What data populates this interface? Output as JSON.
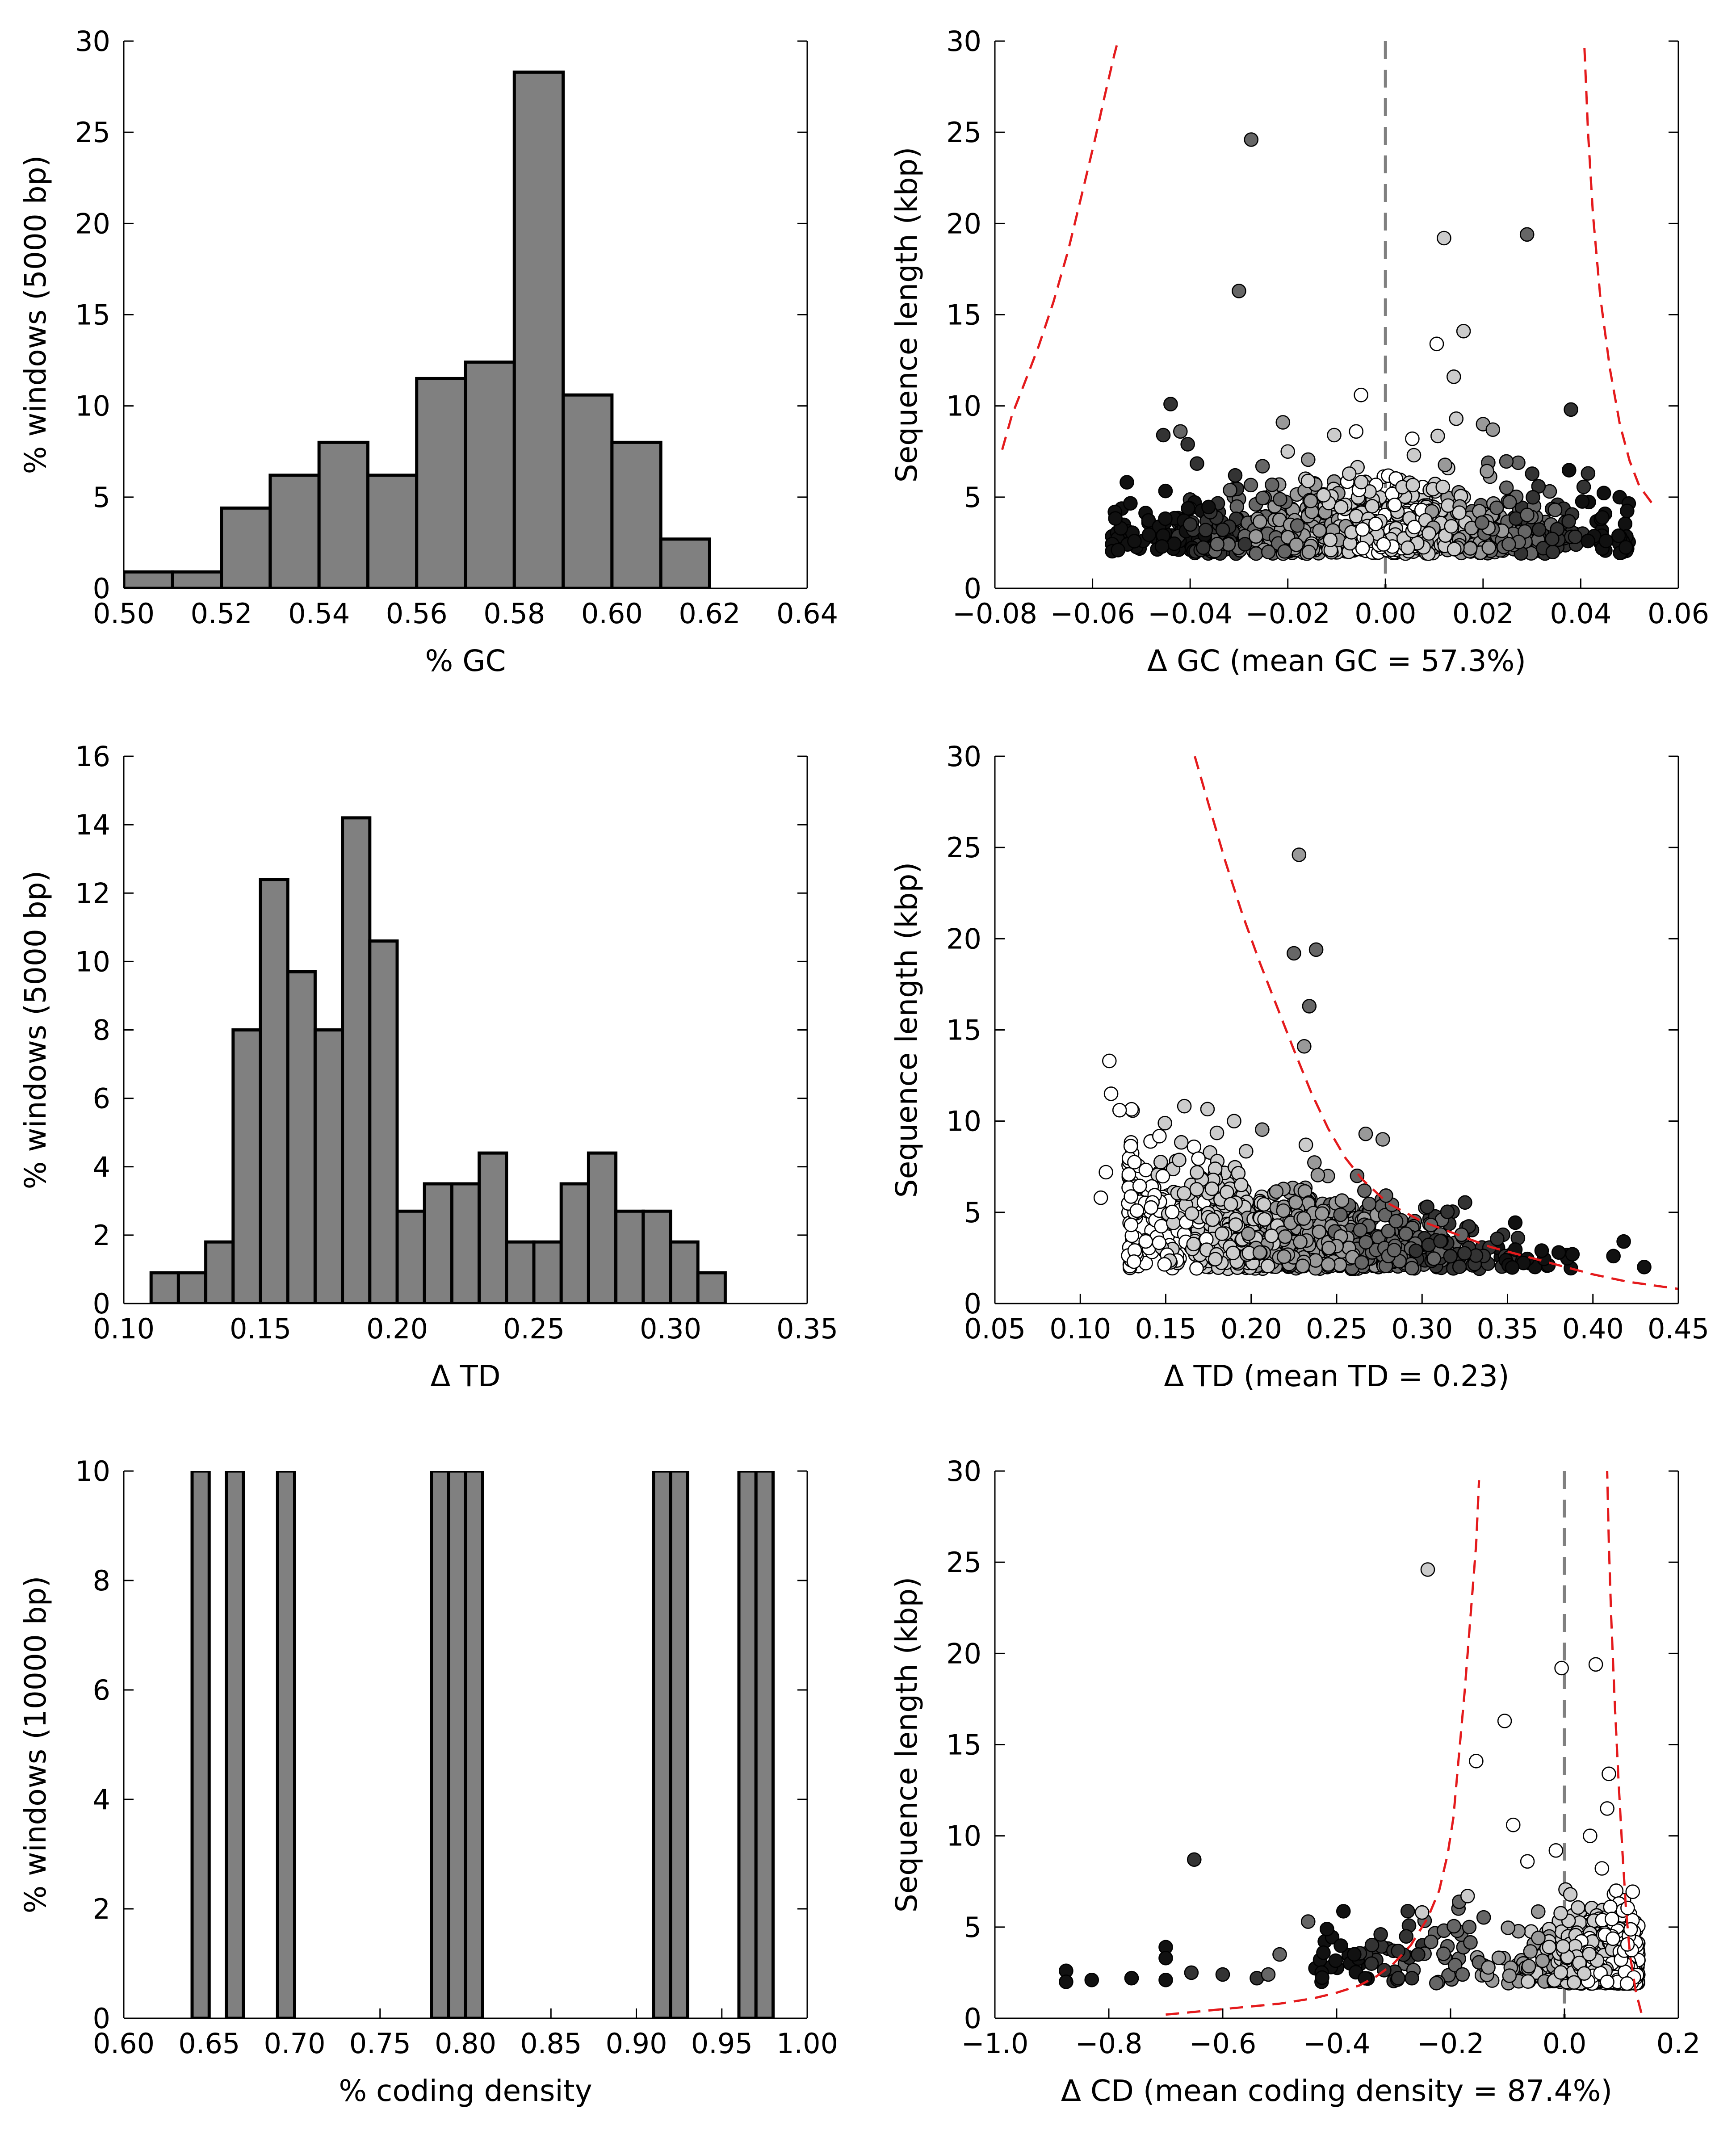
{
  "colors": {
    "bar_fill": "#808080",
    "bar_stroke": "#000000",
    "threshold_line": "#e41a1c",
    "zero_line": "#808080",
    "point_stroke": "#000000"
  },
  "chart_data": [
    {
      "type": "bar",
      "subtype": "histogram",
      "xlabel": "% GC",
      "ylabel": "% windows (5000 bp)",
      "xlim": [
        0.5,
        0.64
      ],
      "ylim": [
        0,
        30
      ],
      "xticks": [
        "0.50",
        "0.52",
        "0.54",
        "0.56",
        "0.58",
        "0.60",
        "0.62",
        "0.64"
      ],
      "yticks": [
        "0",
        "5",
        "10",
        "15",
        "20",
        "25",
        "30"
      ],
      "bin_width": 0.01,
      "bin_starts": [
        0.5,
        0.51,
        0.52,
        0.53,
        0.54,
        0.55,
        0.56,
        0.57,
        0.58,
        0.59,
        0.6,
        0.61
      ],
      "values": [
        0.9,
        0.9,
        4.4,
        6.2,
        8.0,
        6.2,
        11.5,
        12.4,
        28.3,
        10.6,
        8.0,
        2.7
      ]
    },
    {
      "type": "scatter",
      "xlabel": "Δ GC (mean GC = 57.3%)",
      "ylabel": "Sequence length (kbp)",
      "xlim": [
        -0.08,
        0.06
      ],
      "ylim": [
        0,
        30
      ],
      "xticks": [
        "−0.08",
        "−0.06",
        "−0.04",
        "−0.02",
        "0.00",
        "0.02",
        "0.04",
        "0.06"
      ],
      "yticks": [
        "0",
        "5",
        "10",
        "15",
        "20",
        "25",
        "30"
      ],
      "zero_line": true,
      "threshold_curves": [
        {
          "x": [
            -0.0785,
            -0.0765,
            -0.074,
            -0.071,
            -0.068,
            -0.065,
            -0.062,
            -0.0595,
            -0.0575,
            -0.0555,
            -0.0548
          ],
          "y": [
            7.6,
            9.5,
            11.2,
            13.3,
            15.7,
            18.5,
            21.8,
            24.6,
            27.0,
            29.3,
            30.0
          ]
        },
        {
          "x": [
            0.0545,
            0.052,
            0.05,
            0.048,
            0.046,
            0.044,
            0.0425,
            0.0415,
            0.0407
          ],
          "y": [
            4.7,
            5.6,
            7.0,
            9.0,
            12.0,
            16.0,
            20.5,
            25.0,
            30.0
          ]
        }
      ],
      "point_colors": [
        "#ffffff",
        "#cccccc",
        "#999999",
        "#666666",
        "#333333",
        "#111111"
      ],
      "outliers": [
        {
          "x": -0.0275,
          "y": 24.6,
          "c": "#666666"
        },
        {
          "x": -0.03,
          "y": 16.3,
          "c": "#666666"
        },
        {
          "x": 0.029,
          "y": 19.4,
          "c": "#666666"
        },
        {
          "x": 0.012,
          "y": 19.2,
          "c": "#cccccc"
        },
        {
          "x": 0.016,
          "y": 14.1,
          "c": "#cccccc"
        },
        {
          "x": 0.0105,
          "y": 13.4,
          "c": "#ffffff"
        },
        {
          "x": 0.014,
          "y": 11.6,
          "c": "#cccccc"
        },
        {
          "x": -0.005,
          "y": 10.6,
          "c": "#ffffff"
        },
        {
          "x": -0.044,
          "y": 10.1,
          "c": "#333333"
        },
        {
          "x": 0.038,
          "y": 9.8,
          "c": "#333333"
        },
        {
          "x": -0.021,
          "y": 9.1,
          "c": "#999999"
        },
        {
          "x": 0.0145,
          "y": 9.3,
          "c": "#cccccc"
        },
        {
          "x": 0.02,
          "y": 9.0,
          "c": "#999999"
        },
        {
          "x": -0.006,
          "y": 8.6,
          "c": "#ffffff"
        },
        {
          "x": -0.0105,
          "y": 8.4,
          "c": "#cccccc"
        },
        {
          "x": -0.0455,
          "y": 8.4,
          "c": "#333333"
        },
        {
          "x": -0.042,
          "y": 8.6,
          "c": "#666666"
        },
        {
          "x": 0.022,
          "y": 8.7,
          "c": "#999999"
        },
        {
          "x": 0.0415,
          "y": 6.3,
          "c": "#333333"
        },
        {
          "x": -0.02,
          "y": 7.5,
          "c": "#cccccc"
        },
        {
          "x": -0.0405,
          "y": 7.9,
          "c": "#333333"
        },
        {
          "x": 0.0055,
          "y": 8.2,
          "c": "#ffffff"
        }
      ],
      "cluster": {
        "x_center": -0.003,
        "x_spread": 0.023,
        "x_min": -0.056,
        "x_max": 0.05,
        "y_min": 1.9,
        "y_typical": 3.2,
        "count": 1100,
        "color_by": "x"
      }
    },
    {
      "type": "bar",
      "subtype": "histogram",
      "xlabel": "Δ TD",
      "ylabel": "% windows (5000 bp)",
      "xlim": [
        0.1,
        0.35
      ],
      "ylim": [
        0,
        16
      ],
      "xticks": [
        "0.10",
        "0.15",
        "0.20",
        "0.25",
        "0.30",
        "0.35"
      ],
      "yticks": [
        "0",
        "2",
        "4",
        "6",
        "8",
        "10",
        "12",
        "14",
        "16"
      ],
      "bin_width": 0.01,
      "bin_starts": [
        0.11,
        0.12,
        0.13,
        0.14,
        0.15,
        0.16,
        0.17,
        0.18,
        0.19,
        0.2,
        0.21,
        0.22,
        0.23,
        0.24,
        0.25,
        0.26,
        0.27,
        0.28,
        0.29,
        0.3,
        0.31
      ],
      "values": [
        0.9,
        0.9,
        1.8,
        8.0,
        12.4,
        9.7,
        8.0,
        14.2,
        10.6,
        2.7,
        3.5,
        3.5,
        4.4,
        1.8,
        1.8,
        3.5,
        4.4,
        2.7,
        2.7,
        1.8,
        0.9
      ]
    },
    {
      "type": "scatter",
      "xlabel": "Δ TD (mean TD = 0.23)",
      "ylabel": "Sequence length (kbp)",
      "xlim": [
        0.05,
        0.45
      ],
      "ylim": [
        0,
        30
      ],
      "xticks": [
        "0.05",
        "0.10",
        "0.15",
        "0.20",
        "0.25",
        "0.30",
        "0.35",
        "0.40",
        "0.45"
      ],
      "yticks": [
        "0",
        "5",
        "10",
        "15",
        "20",
        "25",
        "30"
      ],
      "zero_line": false,
      "threshold_curves": [
        {
          "x": [
            0.167,
            0.175,
            0.185,
            0.195,
            0.205,
            0.215,
            0.225,
            0.235,
            0.245,
            0.255,
            0.265,
            0.28,
            0.3,
            0.32,
            0.34,
            0.36,
            0.38,
            0.4,
            0.42,
            0.45
          ],
          "y": [
            30.0,
            27.4,
            24.2,
            21.3,
            18.7,
            16.3,
            13.9,
            11.6,
            9.6,
            8.0,
            6.8,
            5.5,
            4.5,
            3.8,
            3.1,
            2.6,
            2.1,
            1.6,
            1.2,
            0.8
          ]
        }
      ],
      "point_colors": [
        "#ffffff",
        "#cccccc",
        "#999999",
        "#666666",
        "#333333",
        "#111111"
      ],
      "outliers": [
        {
          "x": 0.228,
          "y": 24.6,
          "c": "#999999"
        },
        {
          "x": 0.238,
          "y": 19.4,
          "c": "#666666"
        },
        {
          "x": 0.225,
          "y": 19.2,
          "c": "#666666"
        },
        {
          "x": 0.234,
          "y": 16.3,
          "c": "#666666"
        },
        {
          "x": 0.231,
          "y": 14.1,
          "c": "#999999"
        },
        {
          "x": 0.117,
          "y": 13.3,
          "c": "#ffffff"
        },
        {
          "x": 0.118,
          "y": 11.5,
          "c": "#ffffff"
        },
        {
          "x": 0.123,
          "y": 10.6,
          "c": "#ffffff"
        },
        {
          "x": 0.19,
          "y": 10.0,
          "c": "#cccccc"
        },
        {
          "x": 0.267,
          "y": 9.3,
          "c": "#999999"
        },
        {
          "x": 0.277,
          "y": 9.0,
          "c": "#999999"
        },
        {
          "x": 0.232,
          "y": 8.7,
          "c": "#cccccc"
        },
        {
          "x": 0.115,
          "y": 7.2,
          "c": "#ffffff"
        },
        {
          "x": 0.112,
          "y": 5.8,
          "c": "#ffffff"
        },
        {
          "x": 0.262,
          "y": 7.0,
          "c": "#666666"
        },
        {
          "x": 0.303,
          "y": 5.3,
          "c": "#333333"
        },
        {
          "x": 0.43,
          "y": 2.0,
          "c": "#111111"
        },
        {
          "x": 0.418,
          "y": 3.4,
          "c": "#111111"
        },
        {
          "x": 0.412,
          "y": 2.6,
          "c": "#111111"
        },
        {
          "x": 0.38,
          "y": 2.8,
          "c": "#111111"
        },
        {
          "x": 0.388,
          "y": 2.7,
          "c": "#111111"
        },
        {
          "x": 0.37,
          "y": 2.9,
          "c": "#111111"
        }
      ],
      "cluster": {
        "x_center": 0.225,
        "x_spread": 0.055,
        "x_min": 0.128,
        "x_max": 0.39,
        "y_min": 1.9,
        "y_typical": 3.2,
        "count": 1100,
        "color_by": "x",
        "length_taper": true
      }
    },
    {
      "type": "bar",
      "subtype": "histogram",
      "xlabel": "% coding density",
      "ylabel": "% windows (10000 bp)",
      "xlim": [
        0.6,
        1.0
      ],
      "ylim": [
        0,
        10
      ],
      "xticks": [
        "0.60",
        "0.65",
        "0.70",
        "0.75",
        "0.80",
        "0.85",
        "0.90",
        "0.95",
        "1.00"
      ],
      "yticks": [
        "0",
        "2",
        "4",
        "6",
        "8",
        "10"
      ],
      "bin_width": 0.01,
      "bin_starts": [
        0.64,
        0.66,
        0.69,
        0.78,
        0.79,
        0.8,
        0.91,
        0.92,
        0.96,
        0.97
      ],
      "values": [
        10,
        10,
        10,
        10,
        10,
        10,
        10,
        10,
        10,
        10
      ]
    },
    {
      "type": "scatter",
      "xlabel": "Δ CD (mean coding density = 87.4%)",
      "ylabel": "Sequence length (kbp)",
      "xlim": [
        -1.0,
        0.2
      ],
      "ylim": [
        0,
        30
      ],
      "xticks": [
        "−1.0",
        "−0.8",
        "−0.6",
        "−0.4",
        "−0.2",
        "0.0",
        "0.2"
      ],
      "yticks": [
        "0",
        "5",
        "10",
        "15",
        "20",
        "25",
        "30"
      ],
      "zero_line": true,
      "threshold_curves": [
        {
          "x": [
            -0.7,
            -0.6,
            -0.5,
            -0.44,
            -0.4,
            -0.36,
            -0.33,
            -0.3,
            -0.27,
            -0.24,
            -0.22,
            -0.205,
            -0.195,
            -0.185,
            -0.175,
            -0.165,
            -0.155,
            -0.15
          ],
          "y": [
            0.2,
            0.5,
            0.8,
            1.1,
            1.4,
            1.8,
            2.3,
            3.0,
            4.0,
            5.5,
            7.0,
            9.0,
            11.0,
            14.5,
            18.0,
            22.0,
            26.0,
            29.5
          ]
        },
        {
          "x": [
            0.135,
            0.125,
            0.115,
            0.108,
            0.102,
            0.095,
            0.088,
            0.082,
            0.078,
            0.075
          ],
          "y": [
            0.3,
            1.5,
            3.5,
            6.0,
            9.0,
            13.0,
            17.5,
            22.0,
            26.0,
            30.0
          ]
        }
      ],
      "point_colors": [
        "#ffffff",
        "#cccccc",
        "#999999",
        "#666666",
        "#333333",
        "#111111"
      ],
      "outliers": [
        {
          "x": -0.24,
          "y": 24.6,
          "c": "#cccccc"
        },
        {
          "x": 0.055,
          "y": 19.4,
          "c": "#ffffff"
        },
        {
          "x": -0.005,
          "y": 19.2,
          "c": "#ffffff"
        },
        {
          "x": -0.105,
          "y": 16.3,
          "c": "#ffffff"
        },
        {
          "x": -0.155,
          "y": 14.1,
          "c": "#ffffff"
        },
        {
          "x": 0.078,
          "y": 13.4,
          "c": "#ffffff"
        },
        {
          "x": 0.075,
          "y": 11.5,
          "c": "#ffffff"
        },
        {
          "x": -0.09,
          "y": 10.6,
          "c": "#ffffff"
        },
        {
          "x": 0.045,
          "y": 10.0,
          "c": "#ffffff"
        },
        {
          "x": -0.065,
          "y": 8.6,
          "c": "#ffffff"
        },
        {
          "x": -0.015,
          "y": 9.2,
          "c": "#ffffff"
        },
        {
          "x": -0.65,
          "y": 8.7,
          "c": "#333333"
        },
        {
          "x": -0.45,
          "y": 5.3,
          "c": "#666666"
        },
        {
          "x": -0.25,
          "y": 5.8,
          "c": "#cccccc"
        },
        {
          "x": -0.7,
          "y": 3.9,
          "c": "#111111"
        },
        {
          "x": -0.7,
          "y": 3.3,
          "c": "#111111"
        },
        {
          "x": -0.875,
          "y": 2.6,
          "c": "#111111"
        },
        {
          "x": -0.875,
          "y": 2.0,
          "c": "#111111"
        },
        {
          "x": -0.83,
          "y": 2.1,
          "c": "#111111"
        },
        {
          "x": -0.76,
          "y": 2.2,
          "c": "#111111"
        },
        {
          "x": -0.7,
          "y": 2.1,
          "c": "#111111"
        },
        {
          "x": -0.655,
          "y": 2.5,
          "c": "#333333"
        },
        {
          "x": -0.6,
          "y": 2.4,
          "c": "#333333"
        },
        {
          "x": -0.54,
          "y": 2.2,
          "c": "#333333"
        },
        {
          "x": -0.52,
          "y": 2.4,
          "c": "#666666"
        },
        {
          "x": -0.5,
          "y": 3.5,
          "c": "#666666"
        },
        {
          "x": -0.17,
          "y": 6.7,
          "c": "#cccccc"
        }
      ],
      "cluster": {
        "x_center": 0.05,
        "x_spread": 0.06,
        "x_min": -0.44,
        "x_max": 0.13,
        "y_min": 1.9,
        "y_typical": 3.2,
        "count": 1100,
        "color_by": "x",
        "skew_left": true
      }
    }
  ]
}
